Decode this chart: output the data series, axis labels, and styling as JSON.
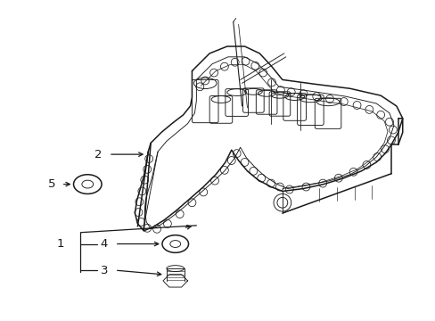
{
  "bg_color": "#ffffff",
  "line_color": "#1a1a1a",
  "figsize": [
    4.89,
    3.6
  ],
  "dpi": 100,
  "lw_main": 1.1,
  "lw_thin": 0.65,
  "lw_bolt": 0.55
}
